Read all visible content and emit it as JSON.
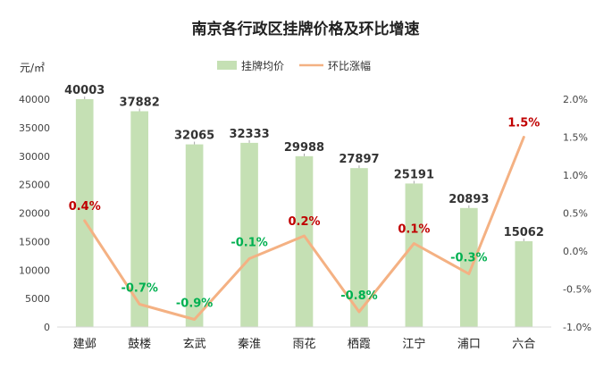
{
  "chart_data": {
    "type": "bar",
    "title": "南京各行政区挂牌价格及环比增速",
    "ylabel": "元/㎡",
    "categories": [
      "建邺",
      "鼓楼",
      "玄武",
      "秦淮",
      "雨花",
      "栖霞",
      "江宁",
      "浦口",
      "六合"
    ],
    "series": [
      {
        "name": "挂牌均价",
        "type": "bar",
        "axis": "left",
        "color": "#c5e0b4",
        "values": [
          40003,
          37882,
          32065,
          32333,
          29988,
          27897,
          25191,
          20893,
          15062
        ],
        "labels": [
          "40003",
          "37882",
          "32065",
          "32333",
          "29988",
          "27897",
          "25191",
          "20893",
          "15062"
        ]
      },
      {
        "name": "环比涨幅",
        "type": "line",
        "axis": "right",
        "color": "#f4b183",
        "values": [
          0.4,
          -0.7,
          -0.9,
          -0.1,
          0.2,
          -0.8,
          0.1,
          -0.3,
          1.5
        ],
        "labels": [
          "0.4%",
          "-0.7%",
          "-0.9%",
          "-0.1%",
          "0.2%",
          "-0.8%",
          "0.1%",
          "-0.3%",
          "1.5%"
        ]
      }
    ],
    "ylim_left": [
      0,
      40000
    ],
    "yticks_left": [
      "0",
      "5000",
      "10000",
      "15000",
      "20000",
      "25000",
      "30000",
      "35000",
      "40000"
    ],
    "ylim_right": [
      -1.0,
      2.0
    ],
    "yticks_right": [
      "-1.0%",
      "-0.5%",
      "0.0%",
      "0.5%",
      "1.0%",
      "1.5%",
      "2.0%"
    ],
    "legend_position": "top-center",
    "grid": false,
    "colors": {
      "positive": "#c00000",
      "negative": "#00b050"
    }
  }
}
